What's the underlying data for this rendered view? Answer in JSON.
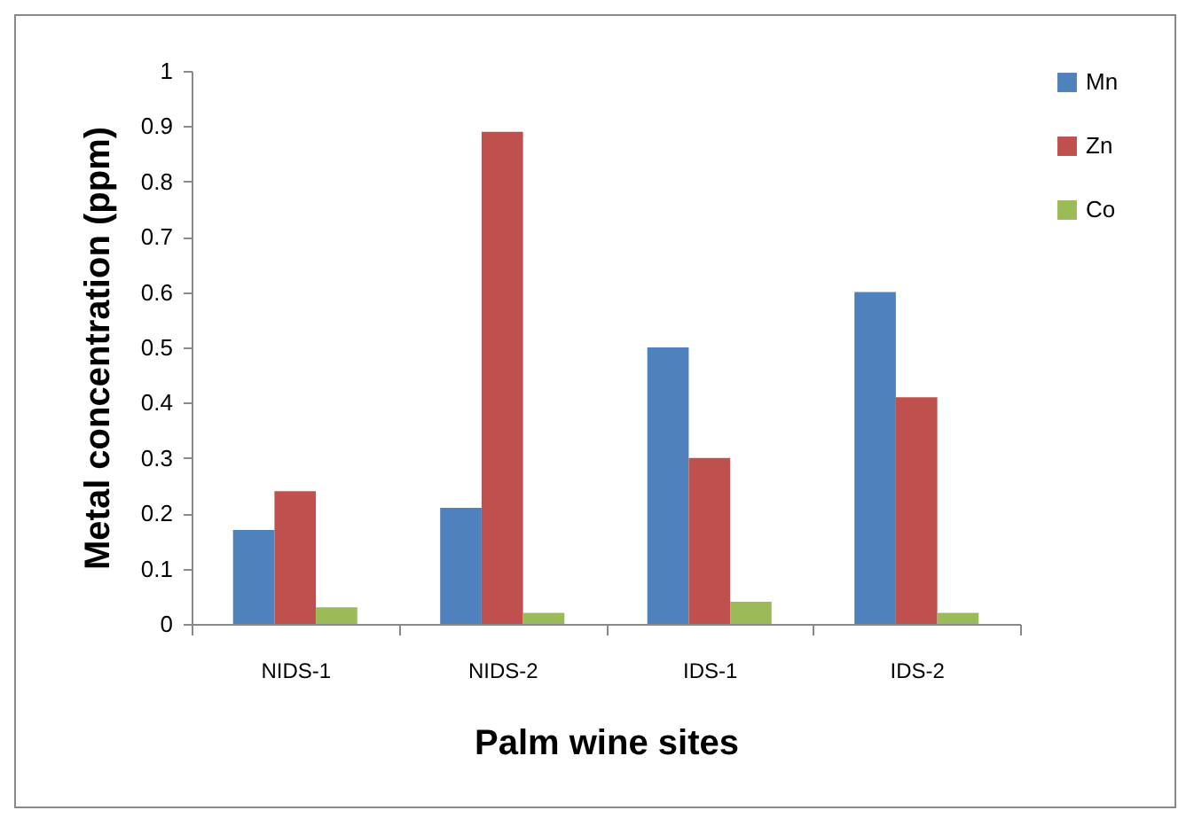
{
  "chart_data": {
    "type": "bar",
    "xlabel": "Palm wine sites",
    "ylabel": "Metal concentration (ppm)",
    "categories": [
      "NIDS-1",
      "NIDS-2",
      "IDS-1",
      "IDS-2"
    ],
    "series": [
      {
        "name": "Mn",
        "color": "#4f81bd",
        "values": [
          0.17,
          0.21,
          0.5,
          0.6
        ]
      },
      {
        "name": "Zn",
        "color": "#c0504d",
        "values": [
          0.24,
          0.89,
          0.3,
          0.41
        ]
      },
      {
        "name": "Co",
        "color": "#9bbb59",
        "values": [
          0.03,
          0.02,
          0.04,
          0.02
        ]
      }
    ],
    "ylim": [
      0,
      1
    ],
    "yticks": [
      0,
      0.1,
      0.2,
      0.3,
      0.4,
      0.5,
      0.6,
      0.7,
      0.8,
      0.9,
      1
    ],
    "grid": false,
    "legend": "right"
  }
}
